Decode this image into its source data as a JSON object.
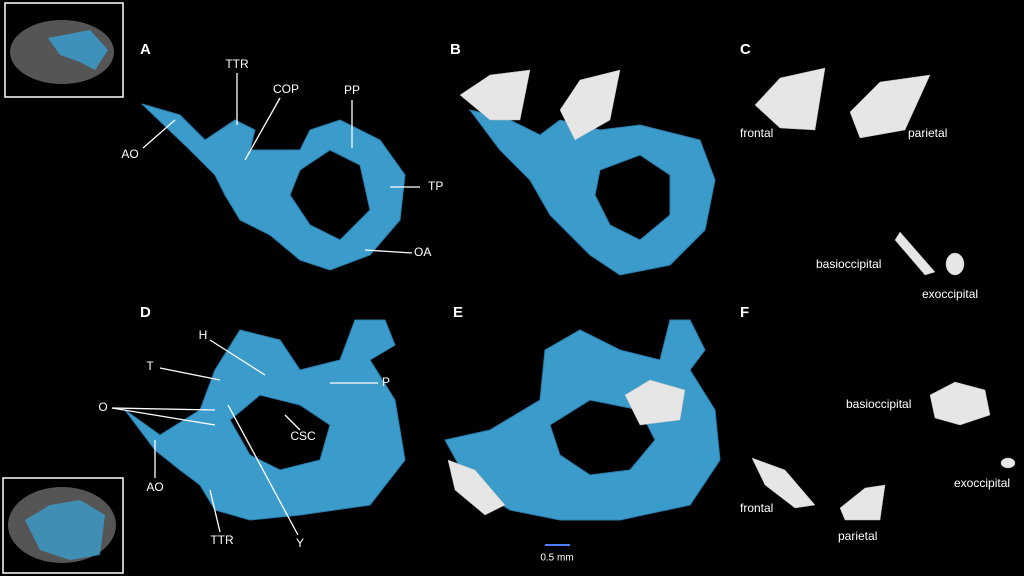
{
  "panels": [
    {
      "letter": "A",
      "labels": [
        "TTR",
        "COP",
        "PP",
        "AO",
        "TP",
        "OA"
      ]
    },
    {
      "letter": "B",
      "labels": []
    },
    {
      "letter": "C",
      "labels": [
        "frontal",
        "parietal",
        "basioccipital",
        "exoccipital"
      ]
    },
    {
      "letter": "D",
      "labels": [
        "H",
        "T",
        "O",
        "P",
        "CSC",
        "AO",
        "TTR",
        "Y"
      ]
    },
    {
      "letter": "E",
      "labels": []
    },
    {
      "letter": "F",
      "labels": [
        "basioccipital",
        "exoccipital",
        "frontal",
        "parietal"
      ]
    }
  ],
  "scale_bar": "0.5 mm"
}
